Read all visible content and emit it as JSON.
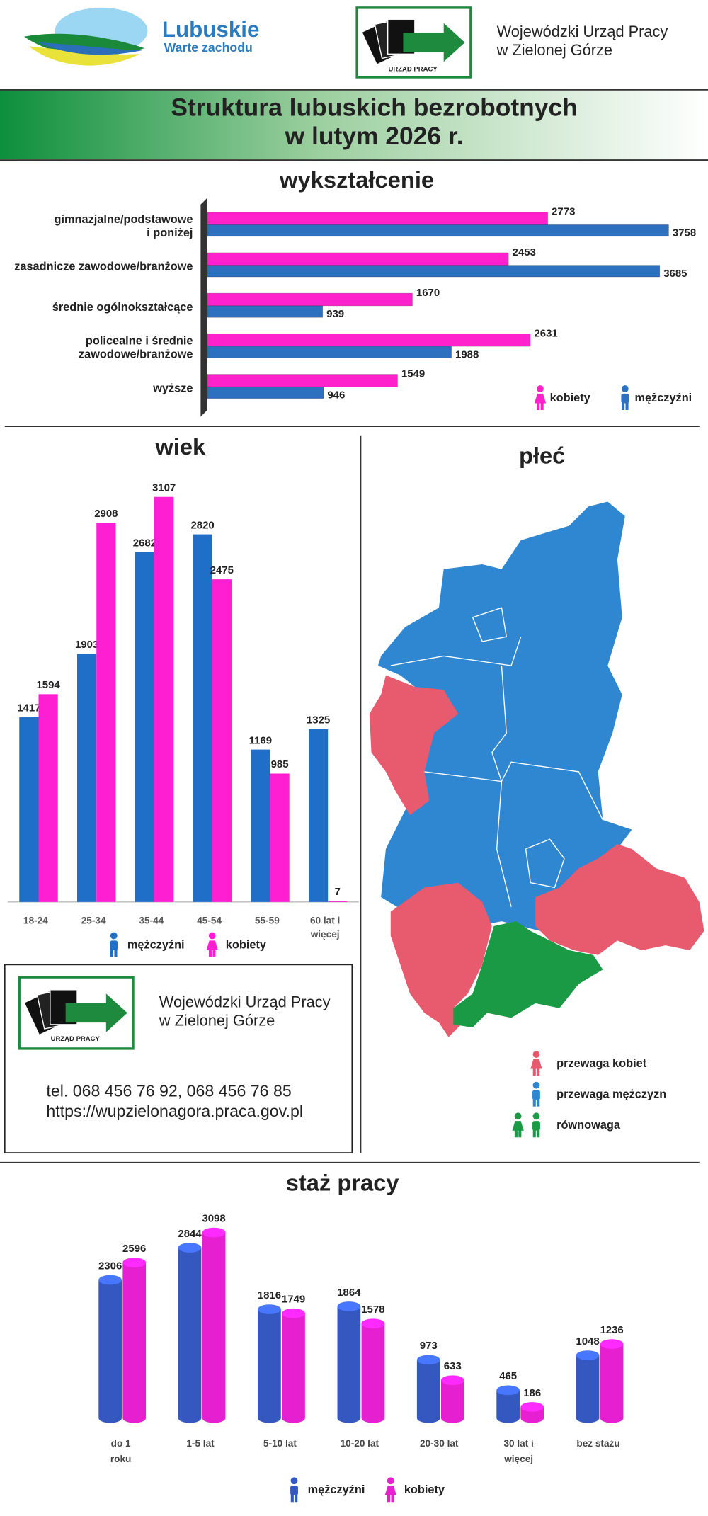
{
  "header": {
    "brand": "Lubuskie",
    "slogan": "Warte zachodu",
    "logo_text": "URZĄD PRACY",
    "office": [
      "Wojewódzki Urząd Pracy",
      "w Zielonej Górze"
    ]
  },
  "title": [
    "Struktura lubuskich bezrobotnych",
    "w lutym 2026 r."
  ],
  "chart_data": [
    {
      "type": "hbar",
      "title": "wykształcenie",
      "categories": [
        [
          "gimnazjalne/podstawowe",
          "i poniżej"
        ],
        [
          "zasadnicze zawodowe/branżowe"
        ],
        [
          "średnie ogólnokształcące"
        ],
        [
          "policealne i średnie",
          "zawodowe/branżowe"
        ],
        [
          "wyższe"
        ]
      ],
      "series": [
        {
          "name": "kobiety",
          "color": "#ff22cc",
          "values": [
            2773,
            2453,
            1670,
            2631,
            1549
          ]
        },
        {
          "name": "mężczyźni",
          "color": "#2e70c0",
          "values": [
            3758,
            3685,
            939,
            1988,
            946
          ]
        }
      ],
      "xlim": [
        0,
        4000
      ]
    },
    {
      "type": "bar",
      "title": "wiek",
      "categories": [
        [
          "18-24"
        ],
        [
          "25-34"
        ],
        [
          "35-44"
        ],
        [
          "45-54"
        ],
        [
          "55-59"
        ],
        [
          "60 lat i",
          "więcej"
        ]
      ],
      "series": [
        {
          "name": "mężczyźni",
          "color": "#1f6fc8",
          "values": [
            1417,
            1903,
            2682,
            2820,
            1169,
            1325
          ]
        },
        {
          "name": "kobiety",
          "color": "#ff1fd3",
          "values": [
            1594,
            2908,
            3107,
            2475,
            985,
            7
          ]
        }
      ],
      "ylim": [
        0,
        3300
      ]
    },
    {
      "type": "cylinder",
      "title": "staż pracy",
      "categories": [
        [
          "do 1",
          "roku"
        ],
        [
          "1-5 lat"
        ],
        [
          "5-10 lat"
        ],
        [
          "10-20 lat"
        ],
        [
          "20-30 lat"
        ],
        [
          "30 lat i",
          "więcej"
        ],
        [
          "bez stażu"
        ]
      ],
      "series": [
        {
          "name": "mężczyźni",
          "color": "#3558c0",
          "values": [
            2306,
            2844,
            1816,
            1864,
            973,
            465,
            1048
          ]
        },
        {
          "name": "kobiety",
          "color": "#e61fd0",
          "values": [
            2596,
            3098,
            1749,
            1578,
            633,
            186,
            1236
          ]
        }
      ],
      "ylim": [
        0,
        3300
      ]
    }
  ],
  "map": {
    "title": "płeć",
    "legend": [
      {
        "label": "przewaga kobiet",
        "color": "#e85a6e"
      },
      {
        "label": "przewaga mężczyzn",
        "color": "#2f86d1"
      },
      {
        "label": "równowaga",
        "color": "#1a9a45"
      }
    ]
  },
  "contact": {
    "logo_text": "URZĄD PRACY",
    "office": [
      "Wojewódzki Urząd Pracy",
      "w Zielonej Górze"
    ],
    "phone": "tel. 068 456 76 92, 068 456 76 85",
    "url": "https://wupzielonagora.praca.gov.pl"
  }
}
